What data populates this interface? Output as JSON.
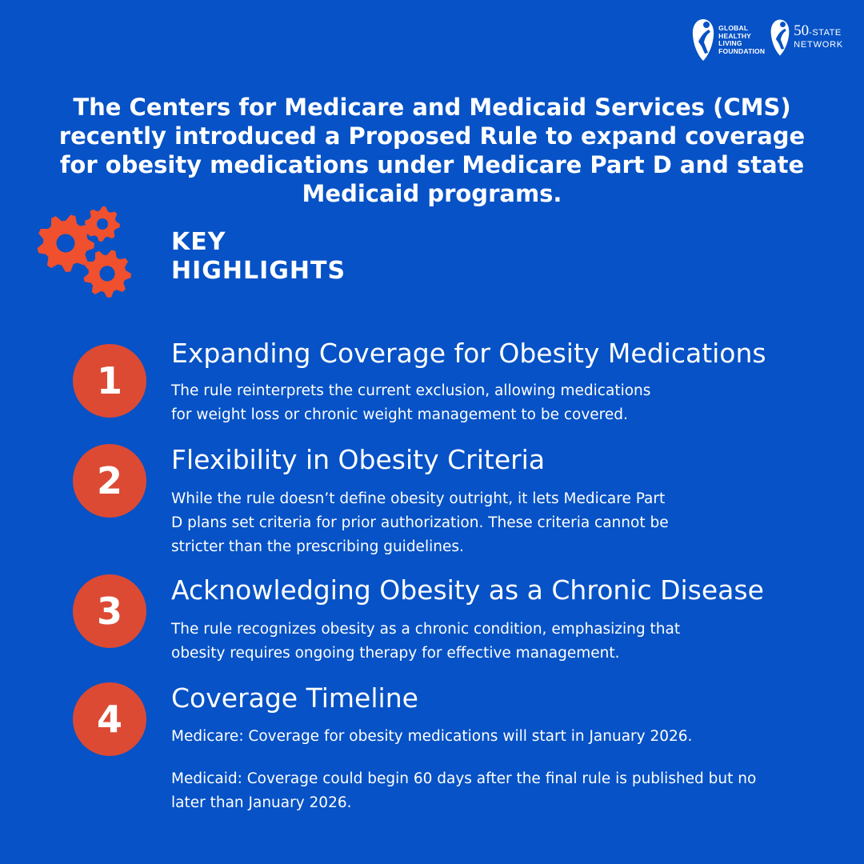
{
  "logos": {
    "ghlf": [
      "GLOBAL",
      "HEALTHY",
      "LIVING",
      "FOUNDATION"
    ],
    "network_number": "50",
    "network_suffix": "-STATE",
    "network_word": "NETWORK"
  },
  "headline": "The Centers for Medicare and Medicaid Services (CMS) recently introduced a Proposed Rule to expand coverage for obesity medications under Medicare Part D and state Medicaid programs.",
  "key_highlights": [
    "KEY",
    "HIGHLIGHTS"
  ],
  "colors": {
    "background": "#0652c6",
    "accent": "#dc4a34",
    "gear": "#f0502e",
    "text": "#ffffff"
  },
  "icons": {
    "gears": "gears-icon"
  },
  "items": [
    {
      "number": "1",
      "title": "Expanding Coverage for Obesity Medications",
      "lines": [
        "The rule reinterprets the current exclusion, allowing medications",
        "for weight loss or chronic weight management to be covered."
      ]
    },
    {
      "number": "2",
      "title": "Flexibility in Obesity Criteria",
      "lines": [
        "While the rule doesn’t define obesity outright, it lets Medicare Part",
        "D plans set criteria for prior authorization. These criteria cannot be",
        "stricter than the prescribing guidelines."
      ]
    },
    {
      "number": "3",
      "title": "Acknowledging Obesity as a Chronic Disease",
      "lines": [
        "The rule recognizes obesity as a chronic condition, emphasizing that",
        "obesity requires ongoing therapy for effective management."
      ]
    },
    {
      "number": "4",
      "title": "Coverage Timeline",
      "lines": [
        "Medicare: Coverage for obesity medications will start in January 2026."
      ],
      "lines2": [
        "Medicaid: Coverage could begin 60 days after the final rule is published but no",
        "later than January 2026."
      ]
    }
  ]
}
